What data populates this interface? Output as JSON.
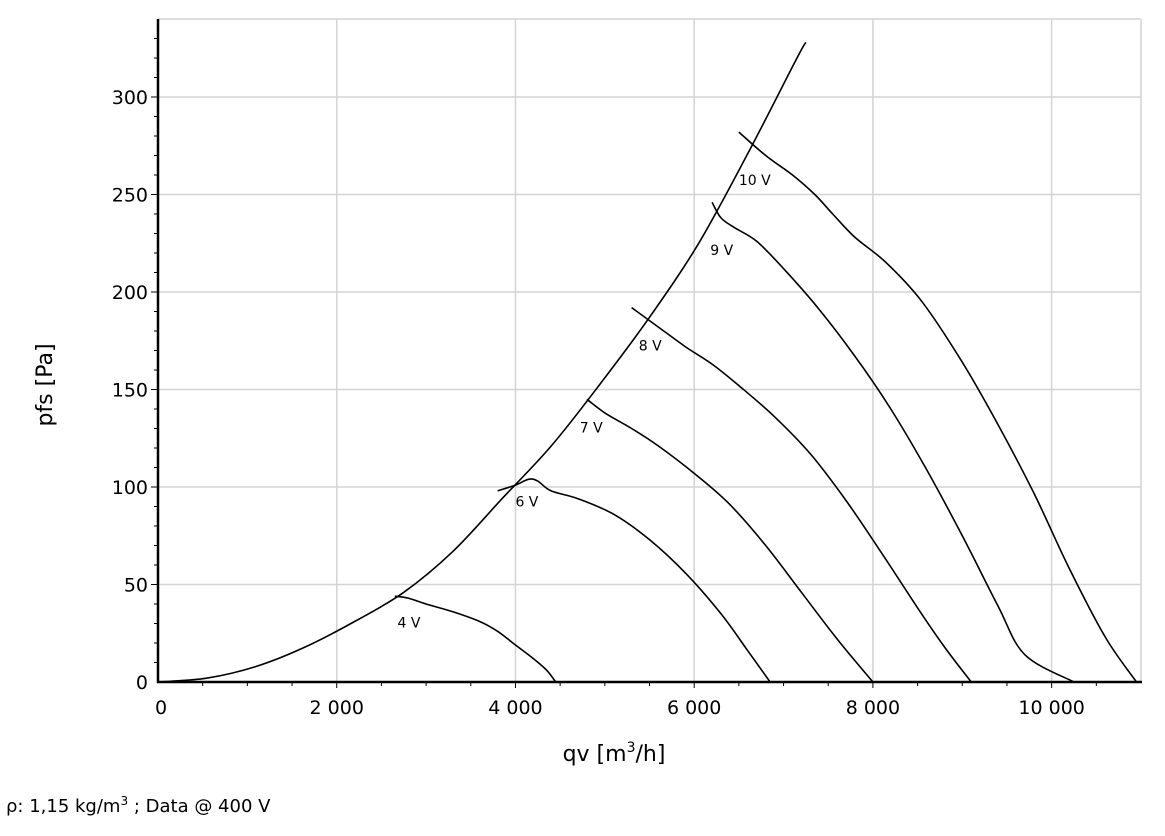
{
  "chart_data": {
    "type": "line",
    "title": "",
    "xlabel": "qv [m",
    "xlabel_sup": "3",
    "xlabel_tail": "/h]",
    "ylabel": "pfs [Pa]",
    "xlim": [
      0,
      11000
    ],
    "ylim": [
      0,
      340
    ],
    "x_ticks": [
      0,
      2000,
      4000,
      6000,
      8000,
      10000
    ],
    "x_tick_labels": [
      "0",
      "2 000",
      "4 000",
      "6 000",
      "8 000",
      "10 000"
    ],
    "y_ticks": [
      0,
      50,
      100,
      150,
      200,
      250,
      300
    ],
    "y_tick_labels": [
      "0",
      "50",
      "100",
      "150",
      "200",
      "250",
      "300"
    ],
    "grid": true,
    "series": [
      {
        "name": "",
        "role": "system-curve",
        "points": [
          [
            0,
            0
          ],
          [
            550,
            2
          ],
          [
            1100,
            8
          ],
          [
            1650,
            18
          ],
          [
            2200,
            31
          ],
          [
            2750,
            46
          ],
          [
            3300,
            67
          ],
          [
            3850,
            94
          ],
          [
            4400,
            121
          ],
          [
            4950,
            153
          ],
          [
            5500,
            187
          ],
          [
            6050,
            225
          ],
          [
            6600,
            271
          ],
          [
            7150,
            320
          ],
          [
            7250,
            328
          ]
        ]
      },
      {
        "name": "4 V",
        "points": [
          [
            2650,
            44
          ],
          [
            2800,
            43
          ],
          [
            3000,
            40
          ],
          [
            3300,
            36
          ],
          [
            3600,
            31
          ],
          [
            3800,
            26
          ],
          [
            4000,
            19
          ],
          [
            4200,
            12
          ],
          [
            4350,
            6
          ],
          [
            4450,
            0
          ]
        ]
      },
      {
        "name": "6 V",
        "points": [
          [
            3800,
            98
          ],
          [
            4000,
            101
          ],
          [
            4150,
            104
          ],
          [
            4250,
            103
          ],
          [
            4400,
            98
          ],
          [
            4700,
            94
          ],
          [
            5100,
            86
          ],
          [
            5500,
            73
          ],
          [
            5900,
            56
          ],
          [
            6300,
            35
          ],
          [
            6600,
            16
          ],
          [
            6850,
            0
          ]
        ]
      },
      {
        "name": "7 V",
        "points": [
          [
            4800,
            145
          ],
          [
            5000,
            138
          ],
          [
            5300,
            130
          ],
          [
            5600,
            121
          ],
          [
            6000,
            107
          ],
          [
            6400,
            91
          ],
          [
            6800,
            70
          ],
          [
            7200,
            46
          ],
          [
            7600,
            22
          ],
          [
            8000,
            0
          ]
        ]
      },
      {
        "name": "8 V",
        "points": [
          [
            5300,
            192
          ],
          [
            5600,
            182
          ],
          [
            5900,
            172
          ],
          [
            6200,
            163
          ],
          [
            6500,
            152
          ],
          [
            6900,
            136
          ],
          [
            7300,
            117
          ],
          [
            7700,
            93
          ],
          [
            8100,
            66
          ],
          [
            8500,
            38
          ],
          [
            8800,
            18
          ],
          [
            9100,
            0
          ]
        ]
      },
      {
        "name": "9 V",
        "points": [
          [
            6200,
            246
          ],
          [
            6300,
            238
          ],
          [
            6450,
            233
          ],
          [
            6700,
            226
          ],
          [
            7000,
            212
          ],
          [
            7400,
            191
          ],
          [
            7800,
            167
          ],
          [
            8200,
            140
          ],
          [
            8600,
            109
          ],
          [
            9000,
            75
          ],
          [
            9400,
            39
          ],
          [
            9700,
            14
          ],
          [
            10250,
            0
          ]
        ]
      },
      {
        "name": "10 V",
        "points": [
          [
            6500,
            282
          ],
          [
            6800,
            270
          ],
          [
            7100,
            260
          ],
          [
            7350,
            250
          ],
          [
            7550,
            240
          ],
          [
            7800,
            228
          ],
          [
            8150,
            215
          ],
          [
            8550,
            195
          ],
          [
            9000,
            164
          ],
          [
            9400,
            132
          ],
          [
            9800,
            97
          ],
          [
            10200,
            58
          ],
          [
            10600,
            23
          ],
          [
            10950,
            0
          ]
        ]
      }
    ],
    "curve_labels": [
      {
        "text": "4 V",
        "x": 2680,
        "y": 28
      },
      {
        "text": "6 V",
        "x": 4000,
        "y": 90
      },
      {
        "text": "7 V",
        "x": 4720,
        "y": 128
      },
      {
        "text": "8 V",
        "x": 5380,
        "y": 170
      },
      {
        "text": "9 V",
        "x": 6180,
        "y": 219
      },
      {
        "text": "10 V",
        "x": 6500,
        "y": 255
      }
    ]
  },
  "footnote": {
    "prefix": "ρ: 1,15 kg/m",
    "sup": "3",
    "suffix": " ; Data @ 400 V"
  },
  "colors": {
    "curve": "#000000",
    "grid": "#d4d4d4",
    "axis": "#000000"
  }
}
